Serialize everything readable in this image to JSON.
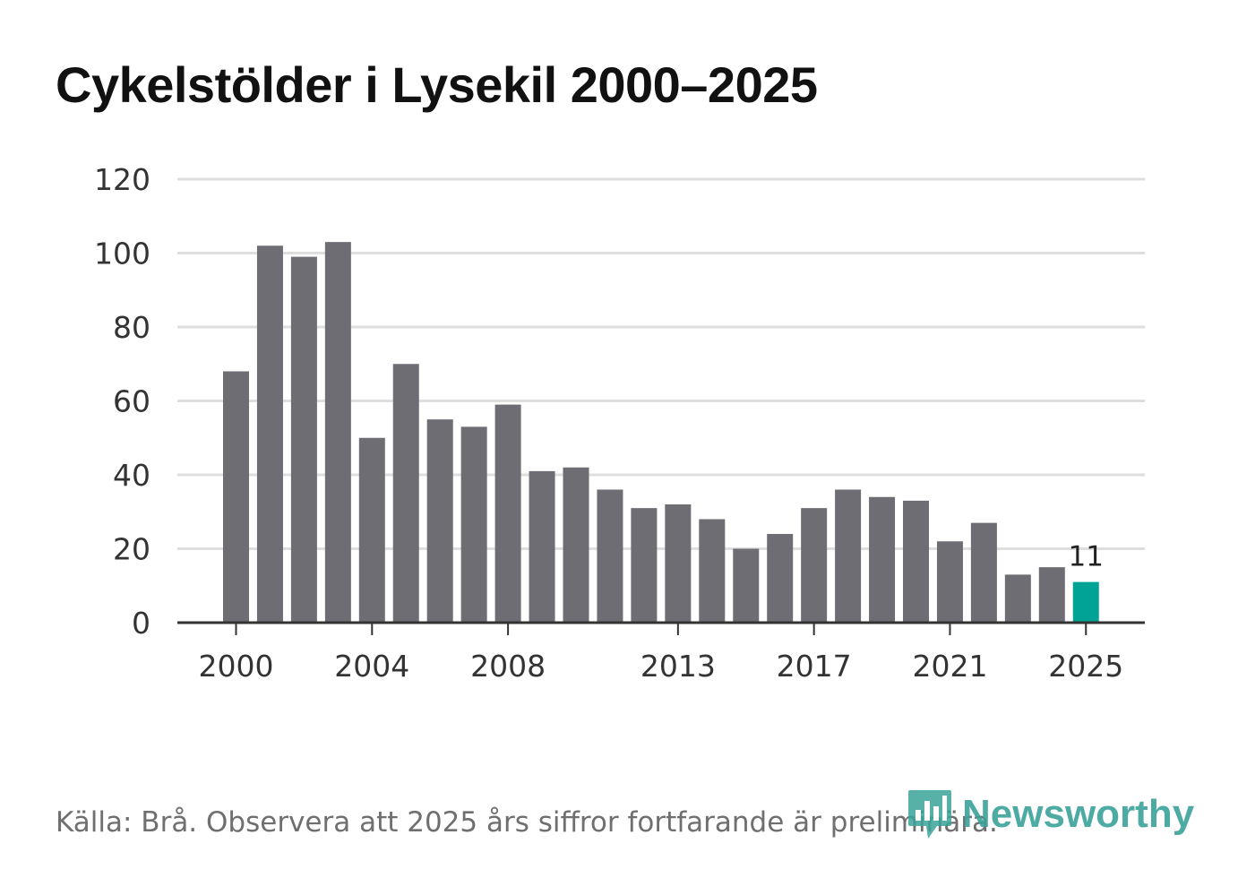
{
  "title": "Cykelstölder i Lysekil 2000–2025",
  "source": "Källa: Brå. Observera att 2025 års siffror fortfarande är preliminära.",
  "brand": {
    "name": "Newsworthy",
    "icon": "newsworthy-logo-icon"
  },
  "colors": {
    "bar": "#6e6d74",
    "highlight": "#00a396",
    "grid": "#dedede",
    "axis": "#333333"
  },
  "chart_data": {
    "type": "bar",
    "title": "Cykelstölder i Lysekil 2000–2025",
    "xlabel": "",
    "ylabel": "",
    "ylim": [
      0,
      120
    ],
    "yticks": [
      0,
      20,
      40,
      60,
      80,
      100,
      120
    ],
    "xtick_labels": [
      "2000",
      "2004",
      "2008",
      "2013",
      "2017",
      "2021",
      "2025"
    ],
    "categories": [
      "2000",
      "2001",
      "2002",
      "2003",
      "2004",
      "2005",
      "2006",
      "2007",
      "2008",
      "2009",
      "2010",
      "2011",
      "2012",
      "2013",
      "2014",
      "2015",
      "2016",
      "2017",
      "2018",
      "2019",
      "2020",
      "2021",
      "2022",
      "2023",
      "2024",
      "2025"
    ],
    "values": [
      68,
      102,
      99,
      103,
      50,
      70,
      55,
      53,
      59,
      41,
      42,
      36,
      31,
      32,
      28,
      20,
      24,
      31,
      36,
      34,
      33,
      22,
      27,
      13,
      15,
      11
    ],
    "highlight": {
      "category": "2025",
      "label": "11"
    },
    "grid": true
  }
}
